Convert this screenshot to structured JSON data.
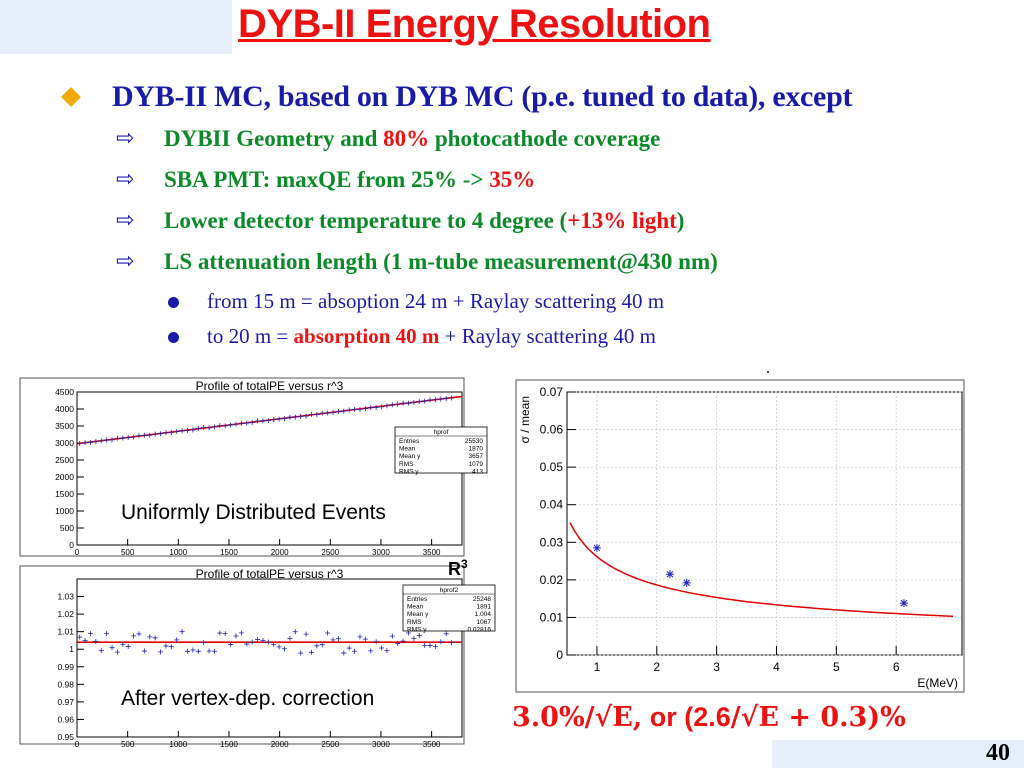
{
  "title": "DYB-II Energy Resolution",
  "bullet_main": "DYB-II MC, based on DYB MC (p.e. tuned to data), except",
  "bullets": [
    {
      "pre": "DYBII Geometry and ",
      "red": "80%",
      "post": " photocathode coverage"
    },
    {
      "pre": "SBA PMT: maxQE from 25% -> ",
      "red": "35%",
      "post": ""
    },
    {
      "pre": "Lower detector temperature to 4 degree (",
      "red": "+13% light",
      "post": ")"
    },
    {
      "pre": "LS attenuation length  (1 m-tube measurement@430 nm)",
      "red": "",
      "post": ""
    }
  ],
  "subbullets": [
    {
      "pre": "from 15 m = absoption 24 m + Raylay scattering 40 m",
      "red": "",
      "post": ""
    },
    {
      "pre": "to 20 m = ",
      "red": "absorption 40 m",
      "post": " + Raylay scattering 40 m"
    }
  ],
  "label_uniform": "Uniformly Distributed Events",
  "label_corrected": "After vertex-dep. correction",
  "r3_label": "R",
  "r3_sup": "3",
  "formula": {
    "part1": "3.0%/√E,",
    "or": " or (2.6",
    "part2": "/√E + 0.3)%"
  },
  "slide_number": "40",
  "dot_mark": ".",
  "chart_data": [
    {
      "type": "scatter",
      "title": "Profile of totalPE versus r^3",
      "xlim": [
        0,
        3800
      ],
      "ylim": [
        0,
        4500
      ],
      "xticks": [
        "0",
        "500",
        "1000",
        "1500",
        "2000",
        "2500",
        "3000",
        "3500"
      ],
      "xtick_values": [
        0,
        500,
        1000,
        1500,
        2000,
        2500,
        3000,
        3500
      ],
      "yticks": [
        "0",
        "500",
        "1000",
        "1500",
        "2000",
        "2500",
        "3000",
        "3500",
        "4000",
        "4500"
      ],
      "ytick_values": [
        0,
        500,
        1000,
        1500,
        2000,
        2500,
        3000,
        3500,
        4000,
        4500
      ],
      "fit_line": {
        "x": [
          0,
          3800
        ],
        "y": [
          2980,
          4370
        ]
      },
      "stats": {
        "name": "hprof",
        "rows": [
          [
            "Entries",
            "25530"
          ],
          [
            "Mean",
            "1870"
          ],
          [
            "Mean y",
            "3657"
          ],
          [
            "RMS",
            "1079"
          ],
          [
            "RMS y",
            "413"
          ]
        ]
      }
    },
    {
      "type": "scatter",
      "title": "Profile of totalPE versus r^3",
      "xlim": [
        0,
        3800
      ],
      "ylim": [
        0.95,
        1.04
      ],
      "xticks": [
        "0",
        "500",
        "1000",
        "1500",
        "2000",
        "2500",
        "3000",
        "3500"
      ],
      "xtick_values": [
        0,
        500,
        1000,
        1500,
        2000,
        2500,
        3000,
        3500
      ],
      "yticks": [
        "0.95",
        "0.96",
        "0.97",
        "0.98",
        "0.99",
        "1",
        "1.01",
        "1.02",
        "1.03"
      ],
      "ytick_values": [
        0.95,
        0.96,
        0.97,
        0.98,
        0.99,
        1.0,
        1.01,
        1.02,
        1.03
      ],
      "fit_line": {
        "x": [
          0,
          3800
        ],
        "y": [
          1.004,
          1.004
        ]
      },
      "stats": {
        "name": "hprof2",
        "rows": [
          [
            "Entries",
            "25248"
          ],
          [
            "Mean",
            "1891"
          ],
          [
            "Mean y",
            "1.004"
          ],
          [
            "RMS",
            "1067"
          ],
          [
            "RMS y",
            "0.02816"
          ]
        ]
      }
    },
    {
      "type": "scatter",
      "xlabel": "E(MeV)",
      "ylabel": "σ / mean",
      "xlim": [
        0.5,
        7.1
      ],
      "ylim": [
        0,
        0.07
      ],
      "xticks": [
        "1",
        "2",
        "3",
        "4",
        "5",
        "6"
      ],
      "xtick_values": [
        1,
        2,
        3,
        4,
        5,
        6
      ],
      "yticks": [
        "0",
        "0.01",
        "0.02",
        "0.03",
        "0.04",
        "0.05",
        "0.06",
        "0.07"
      ],
      "ytick_values": [
        0,
        0.01,
        0.02,
        0.03,
        0.04,
        0.05,
        0.06,
        0.07
      ],
      "x": [
        1.0,
        2.22,
        2.5,
        6.13
      ],
      "y": [
        0.0285,
        0.0215,
        0.0192,
        0.0138
      ],
      "fit": {
        "a": 0.026,
        "b": 0.003
      }
    }
  ]
}
